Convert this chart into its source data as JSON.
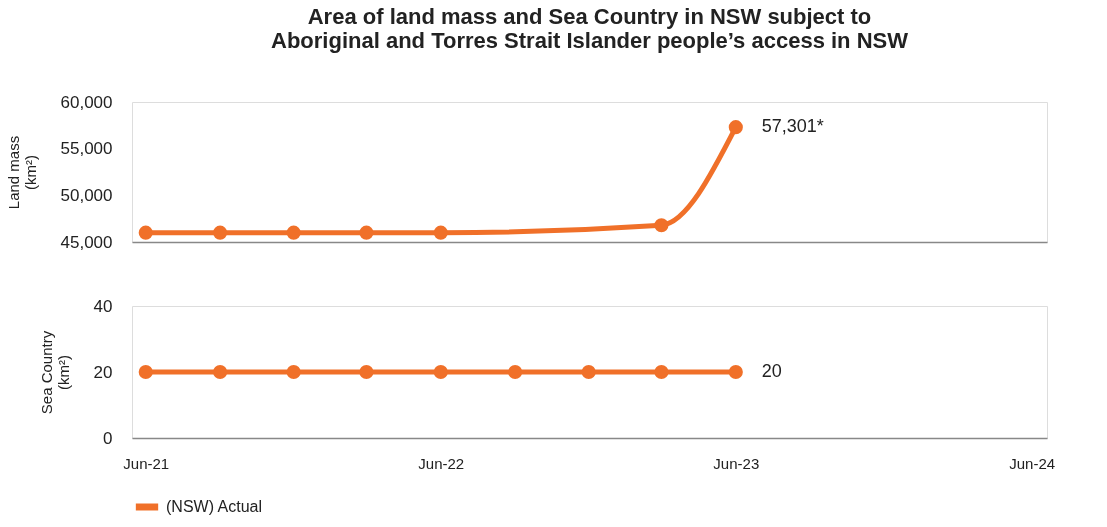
{
  "chart_data": [
    {
      "type": "line",
      "title": "Area of land mass and Sea Country in NSW subject to\nAboriginal and Torres Strait Islander people’s access in NSW",
      "ylabel": "Land mass\n(km²)",
      "series": [
        {
          "color": "#f07029",
          "x": [
            "2021-06",
            "2021-09",
            "2021-12",
            "2022-03",
            "2022-06",
            "2023-03",
            "2023-06"
          ],
          "values": [
            46000,
            46000,
            46000,
            46000,
            46000,
            46800,
            57301
          ]
        }
      ],
      "xlim": [
        "2021-05-15",
        "2024-06-20"
      ],
      "xticks": [
        {
          "value": "2021-06",
          "label": null
        },
        {
          "value": "2022-06",
          "label": null
        },
        {
          "value": "2023-06",
          "label": null
        },
        {
          "value": "2024-06",
          "label": null
        }
      ],
      "ylim": [
        45000,
        60000
      ],
      "yticks": [
        {
          "value": 45000,
          "label": "45,000"
        },
        {
          "value": 50000,
          "label": "50,000"
        },
        {
          "value": 55000,
          "label": "55,000"
        },
        {
          "value": 60000,
          "label": "60,000"
        }
      ],
      "tick_labels": "y",
      "grid": false,
      "marker": "circle",
      "line_style": "solid",
      "annotations": [
        {
          "text": "57,301*",
          "x": "2023-06",
          "y": 57301
        }
      ]
    },
    {
      "type": "line",
      "ylabel": "Sea Country\n(km²)",
      "series": [
        {
          "name": "(NSW) Actual",
          "color": "#f07029",
          "x": [
            "2021-06",
            "2021-09",
            "2021-12",
            "2022-03",
            "2022-06",
            "2022-09",
            "2022-12",
            "2023-03",
            "2023-06"
          ],
          "values": [
            20,
            20,
            20,
            20,
            20,
            20,
            20,
            20,
            20
          ]
        }
      ],
      "xlim": [
        "2021-05-15",
        "2024-06-20"
      ],
      "xticks": [
        {
          "value": "2021-06",
          "label": "Jun-21"
        },
        {
          "value": "2022-06",
          "label": "Jun-22"
        },
        {
          "value": "2023-06",
          "label": "Jun-23"
        },
        {
          "value": "2024-06",
          "label": "Jun-24"
        }
      ],
      "ylim": [
        0,
        40
      ],
      "yticks": [
        0,
        20,
        40
      ],
      "grid": false,
      "marker": "circle",
      "line_style": "solid",
      "legend": "bottom",
      "annotations": [
        {
          "text": "20",
          "x": "2023-06",
          "y": 20
        }
      ]
    }
  ]
}
